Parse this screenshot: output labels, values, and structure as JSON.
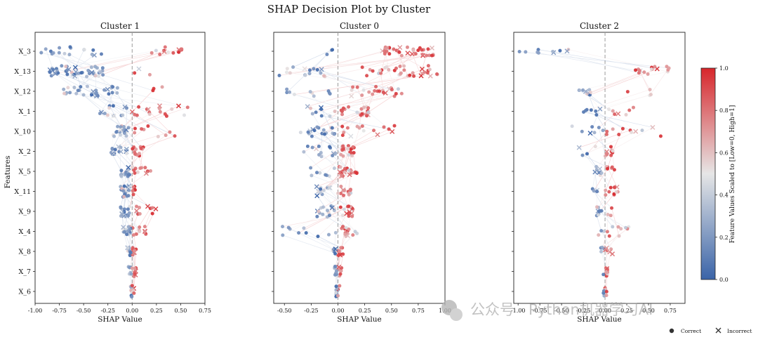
{
  "chart_data": {
    "type": "scatter",
    "suptitle": "SHAP Decision Plot by Cluster",
    "ylabel": "Features",
    "features": [
      "X_3",
      "X_13",
      "X_12",
      "X_1",
      "X_10",
      "X_2",
      "X_5",
      "X_11",
      "X_9",
      "X_4",
      "X_8",
      "X_7",
      "X_6"
    ],
    "colorbar": {
      "label": "Feature Values Scaled to [Low=0, High=1]",
      "ticks": [
        "0.0",
        "0.2",
        "0.4",
        "0.6",
        "0.8",
        "1.0"
      ],
      "low_color": "#3a64a8",
      "mid_color": "#e6e6e6",
      "high_color": "#d7262b"
    },
    "legend": [
      {
        "marker": "circle",
        "label": "Correct"
      },
      {
        "marker": "x",
        "label": "Incorrect"
      }
    ],
    "panels": [
      {
        "title": "Cluster 1",
        "xlabel": "SHAP Value",
        "xlim": [
          -1.0,
          0.75
        ],
        "xticks": [
          "-1.00",
          "-0.75",
          "-0.50",
          "-0.25",
          "0.00",
          "0.25",
          "0.50",
          "0.75"
        ],
        "vline": 0,
        "features": [
          {
            "name": "X_3",
            "neg": {
              "min": -0.95,
              "max": -0.3,
              "frac": 0.45
            },
            "pos": {
              "min": 0.2,
              "max": 0.55,
              "frac": 0.45
            },
            "n": 30,
            "jitter": 0.22
          },
          {
            "name": "X_13",
            "neg": {
              "min": -0.85,
              "max": -0.28,
              "frac": 0.92
            },
            "pos": {
              "min": 0.02,
              "max": 0.2,
              "frac": 0.08
            },
            "n": 50,
            "jitter": 0.28
          },
          {
            "name": "X_12",
            "neg": {
              "min": -0.75,
              "max": -0.15,
              "frac": 0.8
            },
            "pos": {
              "min": 0.1,
              "max": 0.45,
              "frac": 0.2
            },
            "n": 32,
            "jitter": 0.25
          },
          {
            "name": "X_1",
            "neg": {
              "min": -0.35,
              "max": -0.05,
              "frac": 0.5
            },
            "pos": {
              "min": 0.0,
              "max": 0.6,
              "frac": 0.5
            },
            "n": 30,
            "jitter": 0.28
          },
          {
            "name": "X_10",
            "neg": {
              "min": -0.2,
              "max": -0.02,
              "frac": 0.7
            },
            "pos": {
              "min": 0.0,
              "max": 0.68,
              "frac": 0.3
            },
            "n": 30,
            "jitter": 0.28
          },
          {
            "name": "X_2",
            "neg": {
              "min": -0.22,
              "max": -0.02,
              "frac": 0.45
            },
            "pos": {
              "min": 0.0,
              "max": 0.12,
              "frac": 0.55
            },
            "n": 30,
            "jitter": 0.25
          },
          {
            "name": "X_5",
            "neg": {
              "min": -0.12,
              "max": -0.01,
              "frac": 0.5
            },
            "pos": {
              "min": 0.0,
              "max": 0.2,
              "frac": 0.5
            },
            "n": 26,
            "jitter": 0.25
          },
          {
            "name": "X_11",
            "neg": {
              "min": -0.12,
              "max": -0.01,
              "frac": 0.7
            },
            "pos": {
              "min": 0.0,
              "max": 0.05,
              "frac": 0.3
            },
            "n": 26,
            "jitter": 0.28
          },
          {
            "name": "X_9",
            "neg": {
              "min": -0.12,
              "max": -0.01,
              "frac": 0.6
            },
            "pos": {
              "min": 0.02,
              "max": 0.25,
              "frac": 0.4
            },
            "n": 28,
            "jitter": 0.25
          },
          {
            "name": "X_4",
            "neg": {
              "min": -0.12,
              "max": -0.01,
              "frac": 0.55
            },
            "pos": {
              "min": 0.0,
              "max": 0.15,
              "frac": 0.45
            },
            "n": 26,
            "jitter": 0.25
          },
          {
            "name": "X_8",
            "neg": {
              "min": -0.05,
              "max": -0.01,
              "frac": 0.3
            },
            "pos": {
              "min": 0.0,
              "max": 0.04,
              "frac": 0.7
            },
            "n": 18,
            "jitter": 0.22
          },
          {
            "name": "X_7",
            "neg": {
              "min": -0.04,
              "max": -0.01,
              "frac": 0.4
            },
            "pos": {
              "min": 0.0,
              "max": 0.04,
              "frac": 0.6
            },
            "n": 18,
            "jitter": 0.25
          },
          {
            "name": "X_6",
            "neg": {
              "min": -0.02,
              "max": 0.0,
              "frac": 0.5
            },
            "pos": {
              "min": 0.0,
              "max": 0.02,
              "frac": 0.5
            },
            "n": 16,
            "jitter": 0.3
          }
        ]
      },
      {
        "title": "Cluster 0",
        "xlabel": "SHAP Value",
        "xlim": [
          -0.6,
          1.0
        ],
        "xticks": [
          "-0.50",
          "-0.25",
          "0.00",
          "0.25",
          "0.50",
          "0.75",
          "1.00"
        ],
        "vline": 0,
        "features": [
          {
            "name": "X_3",
            "neg": {
              "min": -0.25,
              "max": -0.05,
              "frac": 0.05
            },
            "pos": {
              "min": 0.4,
              "max": 0.9,
              "frac": 0.95
            },
            "n": 40,
            "jitter": 0.22
          },
          {
            "name": "X_13",
            "neg": {
              "min": -0.55,
              "max": -0.05,
              "frac": 0.3
            },
            "pos": {
              "min": 0.2,
              "max": 0.95,
              "frac": 0.7
            },
            "n": 50,
            "jitter": 0.28
          },
          {
            "name": "X_12",
            "neg": {
              "min": -0.48,
              "max": -0.05,
              "frac": 0.35
            },
            "pos": {
              "min": 0.1,
              "max": 0.6,
              "frac": 0.65
            },
            "n": 32,
            "jitter": 0.25
          },
          {
            "name": "X_1",
            "neg": {
              "min": -0.3,
              "max": -0.02,
              "frac": 0.3
            },
            "pos": {
              "min": 0.0,
              "max": 0.3,
              "frac": 0.7
            },
            "n": 30,
            "jitter": 0.25
          },
          {
            "name": "X_10",
            "neg": {
              "min": -0.35,
              "max": -0.02,
              "frac": 0.5
            },
            "pos": {
              "min": 0.0,
              "max": 0.55,
              "frac": 0.5
            },
            "n": 34,
            "jitter": 0.28
          },
          {
            "name": "X_2",
            "neg": {
              "min": -0.35,
              "max": -0.02,
              "frac": 0.3
            },
            "pos": {
              "min": 0.02,
              "max": 0.15,
              "frac": 0.7
            },
            "n": 34,
            "jitter": 0.28
          },
          {
            "name": "X_5",
            "neg": {
              "min": -0.3,
              "max": -0.02,
              "frac": 0.4
            },
            "pos": {
              "min": 0.0,
              "max": 0.18,
              "frac": 0.6
            },
            "n": 30,
            "jitter": 0.25
          },
          {
            "name": "X_11",
            "neg": {
              "min": -0.2,
              "max": -0.02,
              "frac": 0.5
            },
            "pos": {
              "min": 0.0,
              "max": 0.12,
              "frac": 0.5
            },
            "n": 26,
            "jitter": 0.25
          },
          {
            "name": "X_9",
            "neg": {
              "min": -0.2,
              "max": -0.02,
              "frac": 0.4
            },
            "pos": {
              "min": 0.02,
              "max": 0.18,
              "frac": 0.6
            },
            "n": 32,
            "jitter": 0.28
          },
          {
            "name": "X_4",
            "neg": {
              "min": -0.52,
              "max": -0.02,
              "frac": 0.4
            },
            "pos": {
              "min": 0.0,
              "max": 0.2,
              "frac": 0.6
            },
            "n": 26,
            "jitter": 0.25
          },
          {
            "name": "X_8",
            "neg": {
              "min": -0.05,
              "max": -0.01,
              "frac": 0.5
            },
            "pos": {
              "min": 0.0,
              "max": 0.05,
              "frac": 0.5
            },
            "n": 20,
            "jitter": 0.22
          },
          {
            "name": "X_7",
            "neg": {
              "min": -0.04,
              "max": -0.01,
              "frac": 0.55
            },
            "pos": {
              "min": 0.0,
              "max": 0.04,
              "frac": 0.45
            },
            "n": 20,
            "jitter": 0.25
          },
          {
            "name": "X_6",
            "neg": {
              "min": -0.02,
              "max": 0.0,
              "frac": 0.5
            },
            "pos": {
              "min": 0.0,
              "max": 0.02,
              "frac": 0.5
            },
            "n": 16,
            "jitter": 0.3
          }
        ]
      },
      {
        "title": "Cluster 2",
        "xlabel": "SHAP Value",
        "xlim": [
          -1.05,
          0.92
        ],
        "xticks": [
          "-1.00",
          "-0.75",
          "-0.50",
          "-0.25",
          "0.00",
          "0.25",
          "0.50",
          "0.75"
        ],
        "vline": 0,
        "features": [
          {
            "name": "X_3",
            "neg": {
              "min": -1.0,
              "max": -0.4,
              "frac": 1.0
            },
            "pos": {
              "min": 0.0,
              "max": 0.0,
              "frac": 0.0
            },
            "n": 10,
            "jitter": 0.1
          },
          {
            "name": "X_13",
            "neg": {
              "min": -0.2,
              "max": -0.05,
              "frac": 0.0
            },
            "pos": {
              "min": 0.35,
              "max": 0.75,
              "frac": 1.0
            },
            "n": 16,
            "jitter": 0.25
          },
          {
            "name": "X_12",
            "neg": {
              "min": -0.3,
              "max": -0.15,
              "frac": 0.55
            },
            "pos": {
              "min": 0.2,
              "max": 0.55,
              "frac": 0.45
            },
            "n": 14,
            "jitter": 0.25
          },
          {
            "name": "X_1",
            "neg": {
              "min": -0.25,
              "max": -0.02,
              "frac": 0.4
            },
            "pos": {
              "min": 0.0,
              "max": 0.4,
              "frac": 0.6
            },
            "n": 14,
            "jitter": 0.25
          },
          {
            "name": "X_10",
            "neg": {
              "min": -0.4,
              "max": -0.02,
              "frac": 0.6
            },
            "pos": {
              "min": 0.0,
              "max": 0.65,
              "frac": 0.4
            },
            "n": 18,
            "jitter": 0.28
          },
          {
            "name": "X_2",
            "neg": {
              "min": -0.3,
              "max": -0.02,
              "frac": 0.3
            },
            "pos": {
              "min": 0.0,
              "max": 0.1,
              "frac": 0.7
            },
            "n": 14,
            "jitter": 0.25
          },
          {
            "name": "X_5",
            "neg": {
              "min": -0.25,
              "max": -0.02,
              "frac": 0.4
            },
            "pos": {
              "min": 0.0,
              "max": 0.12,
              "frac": 0.6
            },
            "n": 14,
            "jitter": 0.25
          },
          {
            "name": "X_11",
            "neg": {
              "min": -0.15,
              "max": -0.02,
              "frac": 0.5
            },
            "pos": {
              "min": 0.0,
              "max": 0.15,
              "frac": 0.5
            },
            "n": 14,
            "jitter": 0.25
          },
          {
            "name": "X_9",
            "neg": {
              "min": -0.1,
              "max": -0.01,
              "frac": 0.6
            },
            "pos": {
              "min": 0.0,
              "max": 0.1,
              "frac": 0.4
            },
            "n": 12,
            "jitter": 0.22
          },
          {
            "name": "X_4",
            "neg": {
              "min": -0.1,
              "max": -0.01,
              "frac": 0.4
            },
            "pos": {
              "min": 0.0,
              "max": 0.3,
              "frac": 0.6
            },
            "n": 12,
            "jitter": 0.25
          },
          {
            "name": "X_8",
            "neg": {
              "min": -0.05,
              "max": -0.01,
              "frac": 0.5
            },
            "pos": {
              "min": 0.0,
              "max": 0.1,
              "frac": 0.5
            },
            "n": 10,
            "jitter": 0.22
          },
          {
            "name": "X_7",
            "neg": {
              "min": -0.03,
              "max": -0.01,
              "frac": 0.4
            },
            "pos": {
              "min": 0.0,
              "max": 0.03,
              "frac": 0.6
            },
            "n": 10,
            "jitter": 0.25
          },
          {
            "name": "X_6",
            "neg": {
              "min": -0.02,
              "max": 0.0,
              "frac": 0.5
            },
            "pos": {
              "min": 0.0,
              "max": 0.02,
              "frac": 0.5
            },
            "n": 10,
            "jitter": 0.3
          }
        ]
      }
    ]
  },
  "watermark": "公众号 · Python机器学习AI"
}
